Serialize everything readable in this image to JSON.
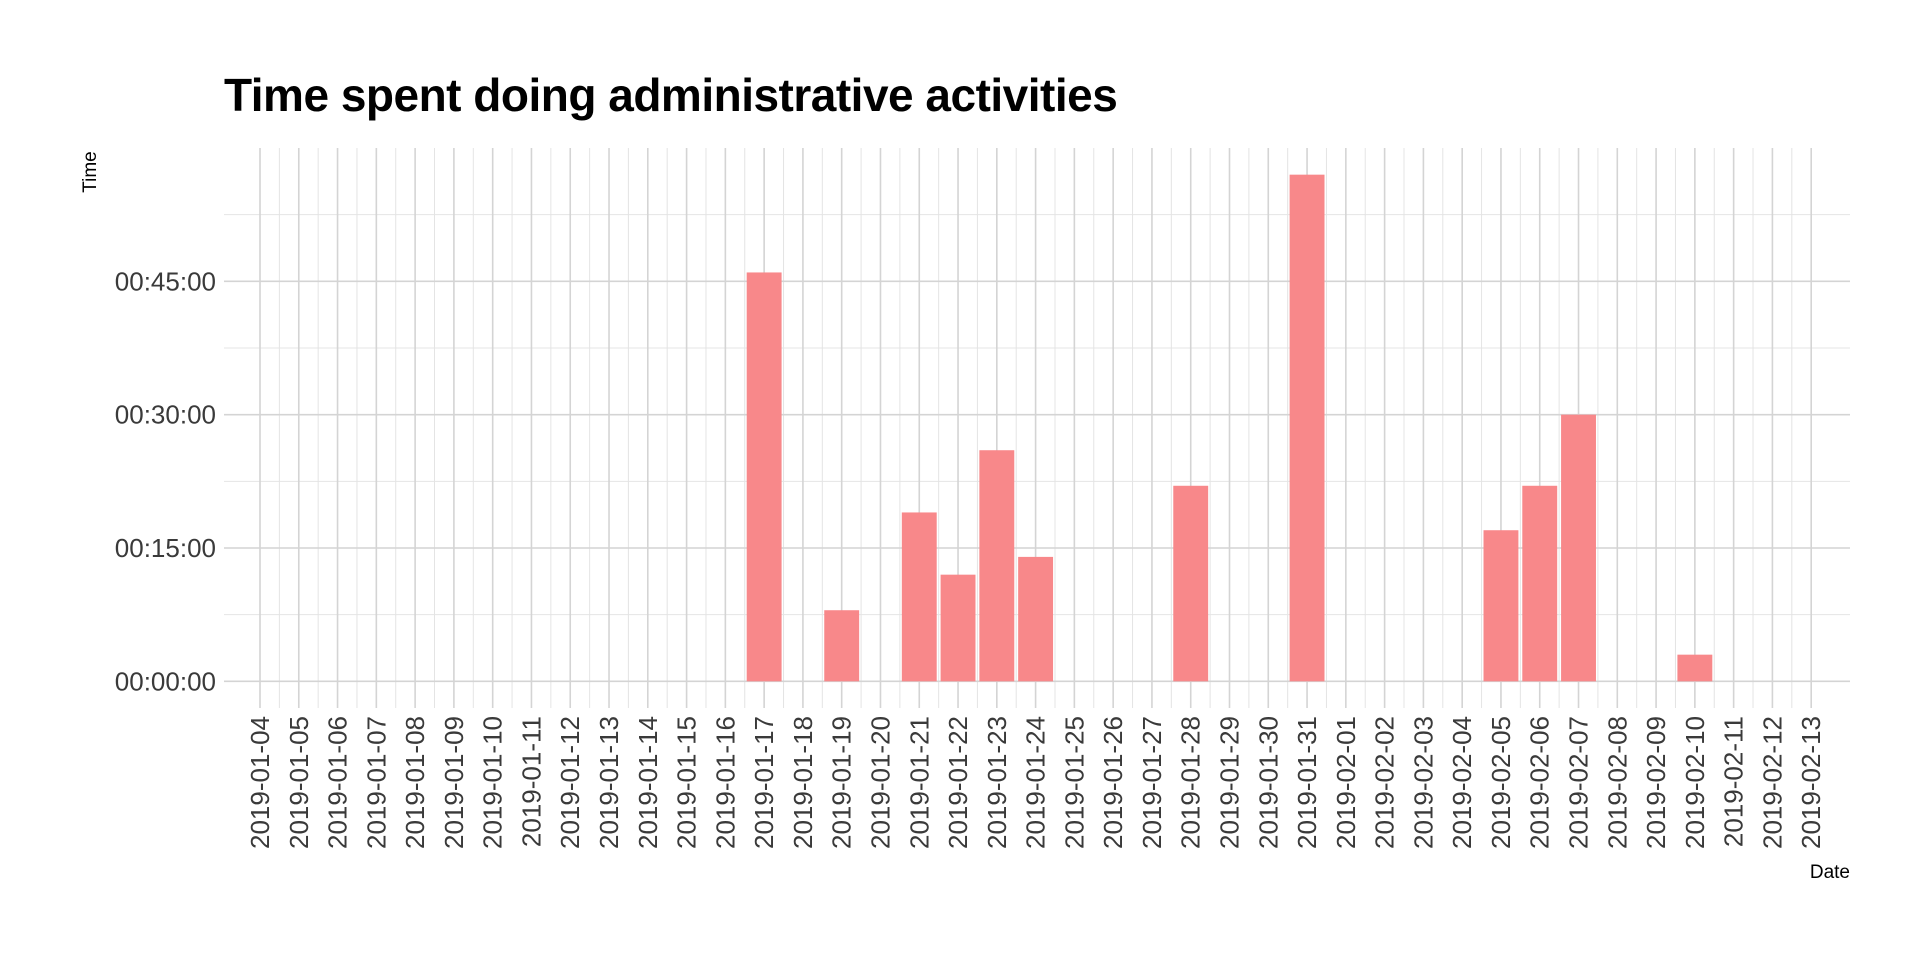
{
  "chart_data": {
    "type": "bar",
    "title": "Time spent doing administrative activities",
    "xlabel": "Date",
    "ylabel": "Time",
    "bar_color": "#f8888a",
    "grid": true,
    "legend": "none",
    "categories": [
      "2019-01-04",
      "2019-01-05",
      "2019-01-06",
      "2019-01-07",
      "2019-01-08",
      "2019-01-09",
      "2019-01-10",
      "2019-01-11",
      "2019-01-12",
      "2019-01-13",
      "2019-01-14",
      "2019-01-15",
      "2019-01-16",
      "2019-01-17",
      "2019-01-18",
      "2019-01-19",
      "2019-01-20",
      "2019-01-21",
      "2019-01-22",
      "2019-01-23",
      "2019-01-24",
      "2019-01-25",
      "2019-01-26",
      "2019-01-27",
      "2019-01-28",
      "2019-01-29",
      "2019-01-30",
      "2019-01-31",
      "2019-02-01",
      "2019-02-02",
      "2019-02-03",
      "2019-02-04",
      "2019-02-05",
      "2019-02-06",
      "2019-02-07",
      "2019-02-08",
      "2019-02-09",
      "2019-02-10",
      "2019-02-11",
      "2019-02-12",
      "2019-02-13"
    ],
    "values_minutes": [
      0,
      0,
      0,
      0,
      0,
      0,
      0,
      0,
      0,
      0,
      0,
      0,
      0,
      46,
      0,
      8,
      0,
      19,
      12,
      26,
      14,
      0,
      0,
      0,
      22,
      0,
      0,
      57,
      0,
      0,
      0,
      0,
      17,
      22,
      30,
      0,
      0,
      3,
      0,
      0,
      0
    ],
    "y_ticks": [
      "00:00:00",
      "00:15:00",
      "00:30:00",
      "00:45:00"
    ],
    "y_tick_values_minutes": [
      0,
      15,
      30,
      45
    ],
    "ylim_minutes": [
      -3,
      60
    ]
  }
}
